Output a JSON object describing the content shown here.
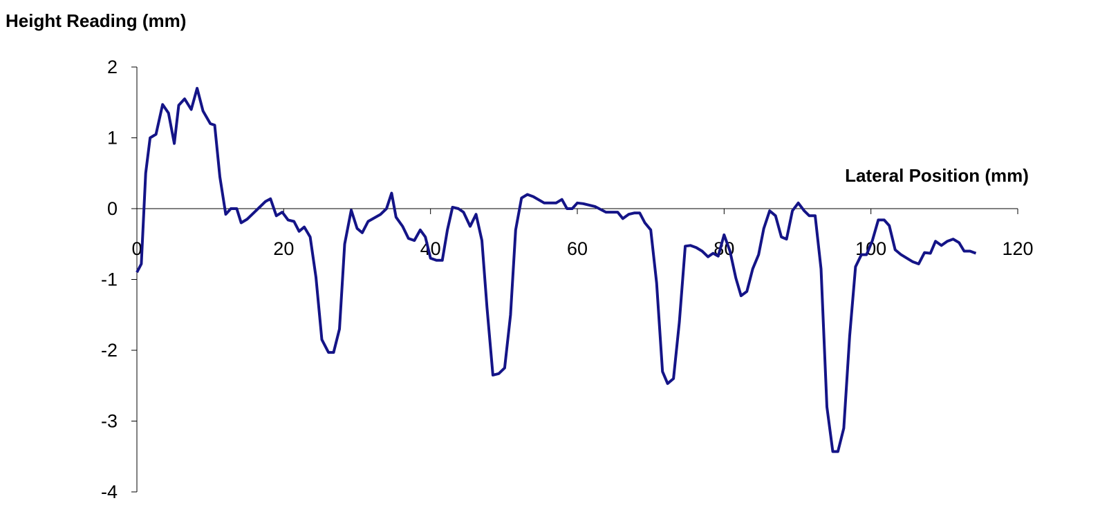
{
  "chart_data": {
    "type": "line",
    "y_label": "Height Reading (mm)",
    "x_label": "Lateral Position (mm)",
    "color": "#141487",
    "xlim": [
      0,
      120
    ],
    "xticks": [
      0,
      20,
      40,
      60,
      80,
      100,
      120
    ],
    "ylim": [
      -4,
      2
    ],
    "yticks": [
      -4,
      -3,
      -2,
      -1,
      0,
      1,
      2
    ],
    "x": [
      0,
      0.6,
      1.2,
      1.8,
      2.6,
      3.5,
      4.3,
      5.1,
      5.7,
      6.5,
      7.4,
      8.2,
      9.0,
      10.0,
      10.6,
      11.3,
      12.1,
      12.8,
      13.6,
      14.2,
      15.0,
      17.5,
      18.2,
      19.0,
      19.8,
      20.6,
      21.4,
      22.1,
      22.8,
      23.6,
      24.4,
      25.2,
      26.1,
      26.8,
      27.6,
      28.3,
      29.2,
      30.0,
      30.7,
      31.5,
      33.2,
      34.0,
      34.7,
      35.3,
      36.2,
      37.0,
      37.8,
      38.6,
      39.3,
      40.0,
      40.8,
      41.6,
      42.3,
      43.0,
      43.8,
      44.5,
      45.4,
      46.2,
      47.0,
      47.7,
      48.5,
      49.3,
      50.1,
      50.9,
      51.6,
      52.4,
      53.2,
      54.0,
      55.5,
      56.3,
      57.1,
      57.9,
      58.6,
      59.3,
      60.0,
      60.8,
      62.4,
      63.9,
      64.7,
      65.5,
      66.2,
      67.0,
      67.8,
      68.5,
      69.2,
      70.0,
      70.8,
      71.6,
      72.3,
      73.1,
      73.9,
      74.7,
      75.4,
      76.2,
      77.0,
      77.8,
      78.5,
      79.2,
      80.0,
      80.8,
      81.6,
      82.3,
      83.1,
      83.9,
      84.7,
      85.4,
      86.2,
      87.0,
      87.8,
      88.5,
      89.3,
      90.1,
      90.9,
      91.6,
      92.4,
      93.2,
      94.0,
      94.8,
      95.5,
      96.3,
      97.1,
      97.9,
      98.7,
      99.4,
      100.2,
      101.0,
      101.8,
      102.5,
      103.3,
      104.1,
      105.7,
      106.5,
      107.3,
      108.1,
      108.8,
      109.6,
      110.4,
      111.2,
      112.0,
      112.7,
      113.5,
      114.3
    ],
    "values": [
      -0.9,
      -0.78,
      0.5,
      1.0,
      1.05,
      1.47,
      1.35,
      0.92,
      1.46,
      1.55,
      1.4,
      1.7,
      1.38,
      1.2,
      1.18,
      0.45,
      -0.08,
      0.0,
      0.0,
      -0.2,
      -0.15,
      0.1,
      0.14,
      -0.1,
      -0.05,
      -0.16,
      -0.18,
      -0.32,
      -0.26,
      -0.4,
      -0.97,
      -1.85,
      -2.03,
      -2.03,
      -1.7,
      -0.5,
      -0.02,
      -0.28,
      -0.34,
      -0.18,
      -0.08,
      0.0,
      0.22,
      -0.12,
      -0.25,
      -0.42,
      -0.45,
      -0.3,
      -0.4,
      -0.7,
      -0.73,
      -0.73,
      -0.3,
      0.02,
      0.0,
      -0.05,
      -0.25,
      -0.08,
      -0.45,
      -1.4,
      -2.35,
      -2.33,
      -2.25,
      -1.5,
      -0.3,
      0.15,
      0.2,
      0.17,
      0.08,
      0.08,
      0.08,
      0.13,
      0.0,
      0.0,
      0.08,
      0.07,
      0.03,
      -0.05,
      -0.05,
      -0.05,
      -0.14,
      -0.08,
      -0.06,
      -0.06,
      -0.2,
      -0.3,
      -1.05,
      -2.3,
      -2.47,
      -2.4,
      -1.6,
      -0.53,
      -0.52,
      -0.55,
      -0.6,
      -0.68,
      -0.63,
      -0.67,
      -0.37,
      -0.6,
      -0.98,
      -1.23,
      -1.17,
      -0.85,
      -0.65,
      -0.28,
      -0.03,
      -0.1,
      -0.4,
      -0.43,
      -0.03,
      0.08,
      -0.03,
      -0.1,
      -0.1,
      -0.85,
      -2.8,
      -3.43,
      -3.43,
      -3.1,
      -1.8,
      -0.82,
      -0.65,
      -0.65,
      -0.45,
      -0.16,
      -0.16,
      -0.24,
      -0.58,
      -0.65,
      -0.75,
      -0.78,
      -0.62,
      -0.63,
      -0.46,
      -0.52,
      -0.46,
      -0.43,
      -0.48,
      -0.6,
      -0.6,
      -0.63
    ]
  }
}
